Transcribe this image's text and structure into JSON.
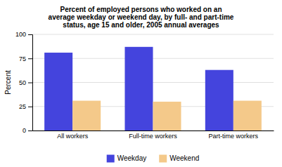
{
  "chart_data": {
    "type": "bar",
    "title": "Percent of employed persons who worked on an\naverage weekday or weekend day, by full- and part-time\nstatus, age 15 and older, 2005 annual averages",
    "categories": [
      "All workers",
      "Full-time workers",
      "Part-time workers"
    ],
    "series": [
      {
        "name": "Weekday",
        "color": "#4444dd",
        "values": [
          81,
          87,
          63
        ]
      },
      {
        "name": "Weekend",
        "color": "#f4c98a",
        "values": [
          31,
          30,
          31
        ]
      }
    ],
    "ylabel": "Percent",
    "ylim": [
      0,
      100
    ],
    "yticks": [
      0,
      25,
      50,
      75,
      100
    ],
    "grid": true,
    "legend": "bottom"
  }
}
